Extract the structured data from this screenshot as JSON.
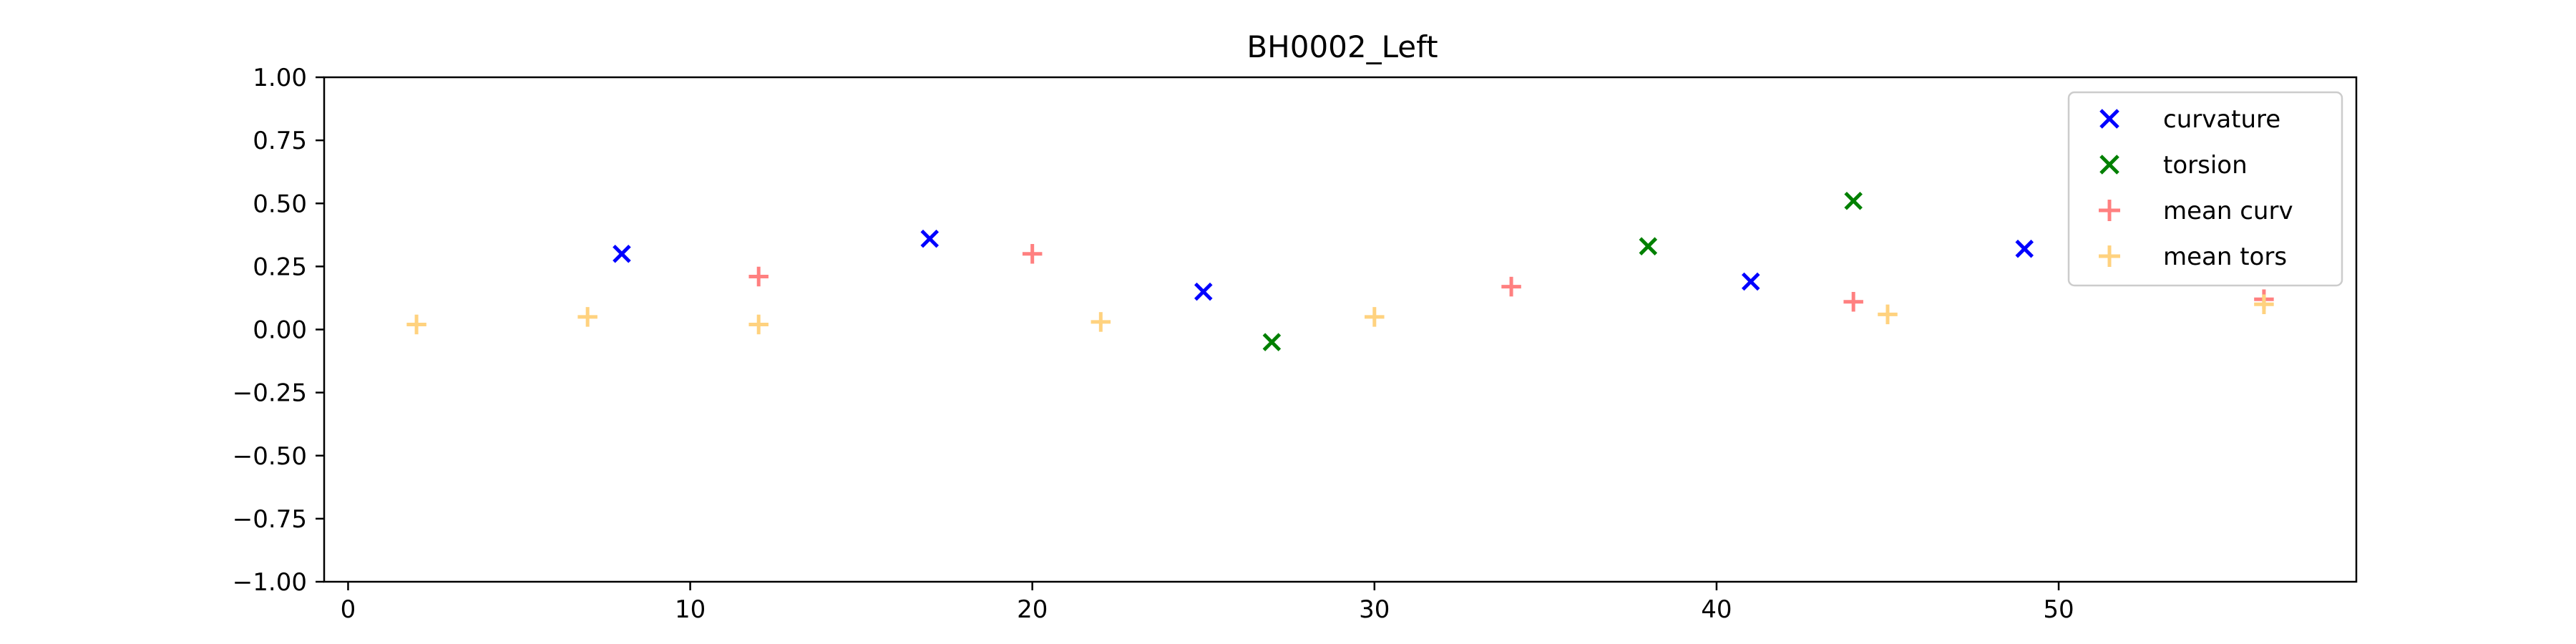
{
  "chart_data": {
    "type": "scatter",
    "title": "BH0002_Left",
    "xlabel": "",
    "ylabel": "",
    "xlim": [
      -0.7,
      58.7
    ],
    "ylim": [
      -1.0,
      1.0
    ],
    "x_ticks": [
      0,
      10,
      20,
      30,
      40,
      50
    ],
    "y_ticks": [
      -1.0,
      -0.75,
      -0.5,
      -0.25,
      0.0,
      0.25,
      0.5,
      0.75,
      1.0
    ],
    "x_tick_labels": [
      "0",
      "10",
      "20",
      "30",
      "40",
      "50"
    ],
    "y_tick_labels": [
      "−1.00",
      "−0.75",
      "−0.50",
      "−0.25",
      "0.00",
      "0.25",
      "0.50",
      "0.75",
      "1.00"
    ],
    "grid": false,
    "legend_position": "top-right",
    "series": [
      {
        "name": "curvature",
        "marker": "x",
        "color": "#0000ff",
        "x": [
          8,
          17,
          25,
          41,
          49
        ],
        "y": [
          0.3,
          0.36,
          0.15,
          0.19,
          0.32
        ]
      },
      {
        "name": "torsion",
        "marker": "x",
        "color": "#008000",
        "x": [
          27,
          38,
          44
        ],
        "y": [
          -0.05,
          0.33,
          0.51
        ]
      },
      {
        "name": "mean curv",
        "marker": "+",
        "color": "#ff8080",
        "x": [
          12,
          20,
          34,
          44,
          56
        ],
        "y": [
          0.21,
          0.3,
          0.17,
          0.11,
          0.12
        ]
      },
      {
        "name": "mean tors",
        "marker": "+",
        "color": "#ffd27f",
        "x": [
          2,
          7,
          12,
          22,
          30,
          45,
          56
        ],
        "y": [
          0.02,
          0.05,
          0.02,
          0.03,
          0.05,
          0.06,
          0.1
        ]
      }
    ]
  }
}
